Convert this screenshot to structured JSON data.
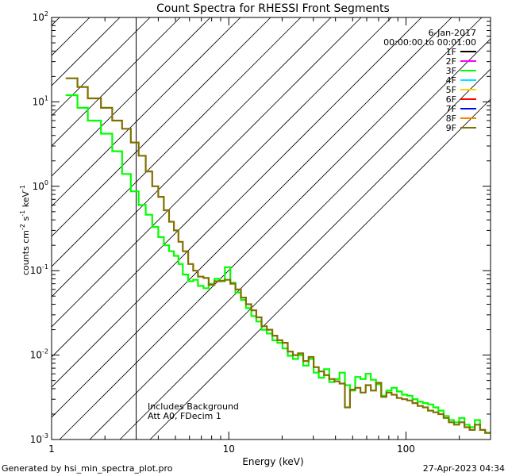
{
  "chart_data": {
    "type": "line",
    "title": "Count Spectra for RHESSI Front Segments",
    "xlabel": "Energy (keV)",
    "ylabel_parts": {
      "a": "counts cm",
      "b": "-2",
      "c": " s",
      "d": "-1",
      "e": " keV",
      "f": "-1"
    },
    "xscale": "log",
    "yscale": "log",
    "xlim": [
      1,
      300
    ],
    "ylim": [
      0.001,
      100
    ],
    "x_ticks": [
      {
        "value": 1,
        "label": "1"
      },
      {
        "value": 10,
        "label": "10"
      },
      {
        "value": 100,
        "label": "100"
      }
    ],
    "y_ticks": [
      {
        "value": 0.001,
        "base": "10",
        "exp": "-3"
      },
      {
        "value": 0.01,
        "base": "10",
        "exp": "-2"
      },
      {
        "value": 0.1,
        "base": "10",
        "exp": "-1"
      },
      {
        "value": 1,
        "base": "10",
        "exp": "0"
      },
      {
        "value": 10,
        "base": "10",
        "exp": "1"
      },
      {
        "value": 100,
        "base": "10",
        "exp": "2"
      }
    ],
    "hatched_region": {
      "x_from": 1,
      "x_to": 3
    },
    "date": "6-Jan-2017",
    "time_range": "00:00:00 to 00:01:00",
    "legend_position": "top-right",
    "legend": [
      {
        "name": "1F",
        "color": "#000000"
      },
      {
        "name": "2F",
        "color": "#ff00ff"
      },
      {
        "name": "3F",
        "color": "#00ff00"
      },
      {
        "name": "4F",
        "color": "#00e5ff"
      },
      {
        "name": "5F",
        "color": "#ffd000"
      },
      {
        "name": "6F",
        "color": "#ff0000"
      },
      {
        "name": "7F",
        "color": "#0000ff"
      },
      {
        "name": "8F",
        "color": "#ff7f00"
      },
      {
        "name": "9F",
        "color": "#807000"
      }
    ],
    "annotations": [
      "Includes Background",
      "Att A0, FDecim 1"
    ],
    "series": [
      {
        "name": "3F",
        "color": "#00ff00",
        "x": [
          1.2,
          1.4,
          1.6,
          1.9,
          2.2,
          2.5,
          2.8,
          3.1,
          3.4,
          3.7,
          4.0,
          4.3,
          4.6,
          4.9,
          5.2,
          5.5,
          5.9,
          6.3,
          6.7,
          7.2,
          7.7,
          8.3,
          8.9,
          9.5,
          10.2,
          10.9,
          11.7,
          12.5,
          13.4,
          14.3,
          15.3,
          16.4,
          17.6,
          18.8,
          20.1,
          21.5,
          23.0,
          24.6,
          26.3,
          28.2,
          30.1,
          32.2,
          34.5,
          36.9,
          39.5,
          42.2,
          45.2,
          48.3,
          51.7,
          55.3,
          59.2,
          63.3,
          67.7,
          72.5,
          77.5,
          82.9,
          88.7,
          94.9,
          101.6,
          108.7,
          116.3,
          124.4,
          133.1,
          142.4,
          152.4,
          163.0,
          174.4,
          186.6,
          199.7,
          213.6,
          228.6,
          244.6,
          261.7,
          280.0
        ],
        "y": [
          12,
          8.5,
          6,
          4.2,
          2.6,
          1.4,
          0.87,
          0.6,
          0.46,
          0.33,
          0.25,
          0.2,
          0.17,
          0.15,
          0.12,
          0.09,
          0.075,
          0.078,
          0.066,
          0.062,
          0.07,
          0.08,
          0.075,
          0.11,
          0.072,
          0.055,
          0.045,
          0.036,
          0.029,
          0.025,
          0.02,
          0.018,
          0.015,
          0.014,
          0.012,
          0.0098,
          0.009,
          0.01,
          0.0075,
          0.009,
          0.0062,
          0.0054,
          0.0068,
          0.0048,
          0.0052,
          0.0062,
          0.0044,
          0.0038,
          0.0055,
          0.0052,
          0.006,
          0.0051,
          0.0045,
          0.0033,
          0.0038,
          0.0041,
          0.0037,
          0.0034,
          0.0033,
          0.003,
          0.0028,
          0.0027,
          0.0026,
          0.0024,
          0.0022,
          0.0019,
          0.0017,
          0.0016,
          0.0018,
          0.0015,
          0.0014,
          0.0017,
          0.0013,
          0.0012
        ]
      },
      {
        "name": "9F",
        "color": "#807000",
        "x": [
          1.2,
          1.4,
          1.6,
          1.9,
          2.2,
          2.5,
          2.8,
          3.1,
          3.4,
          3.7,
          4.0,
          4.3,
          4.6,
          4.9,
          5.2,
          5.5,
          5.9,
          6.3,
          6.7,
          7.2,
          7.7,
          8.3,
          8.9,
          9.5,
          10.2,
          10.9,
          11.7,
          12.5,
          13.4,
          14.3,
          15.3,
          16.4,
          17.6,
          18.8,
          20.1,
          21.5,
          23.0,
          24.6,
          26.3,
          28.2,
          30.1,
          32.2,
          34.5,
          36.9,
          39.5,
          42.2,
          45.2,
          48.3,
          51.7,
          55.3,
          59.2,
          63.3,
          67.7,
          72.5,
          77.5,
          82.9,
          88.7,
          94.9,
          101.6,
          108.7,
          116.3,
          124.4,
          133.1,
          142.4,
          152.4,
          163.0,
          174.4,
          186.6,
          199.7,
          213.6,
          228.6,
          244.6,
          261.7,
          280.0
        ],
        "y": [
          19,
          15,
          11,
          8.5,
          6,
          4.8,
          3.3,
          2.3,
          1.5,
          1.0,
          0.75,
          0.52,
          0.38,
          0.3,
          0.22,
          0.17,
          0.12,
          0.1,
          0.085,
          0.082,
          0.068,
          0.075,
          0.076,
          0.078,
          0.07,
          0.06,
          0.048,
          0.04,
          0.034,
          0.028,
          0.022,
          0.02,
          0.017,
          0.015,
          0.014,
          0.011,
          0.01,
          0.0105,
          0.0085,
          0.0095,
          0.0072,
          0.0064,
          0.0058,
          0.0052,
          0.0049,
          0.0046,
          0.0024,
          0.0039,
          0.0041,
          0.0036,
          0.0044,
          0.0038,
          0.0047,
          0.0032,
          0.0036,
          0.0034,
          0.0031,
          0.003,
          0.0029,
          0.0027,
          0.0025,
          0.0024,
          0.0022,
          0.0021,
          0.002,
          0.0018,
          0.0016,
          0.0015,
          0.0016,
          0.0014,
          0.0013,
          0.0015,
          0.0013,
          0.0012
        ]
      }
    ]
  },
  "footer": {
    "generated_by": "Generated by hsi_min_spectra_plot.pro",
    "timestamp": "27-Apr-2023 04:34"
  }
}
